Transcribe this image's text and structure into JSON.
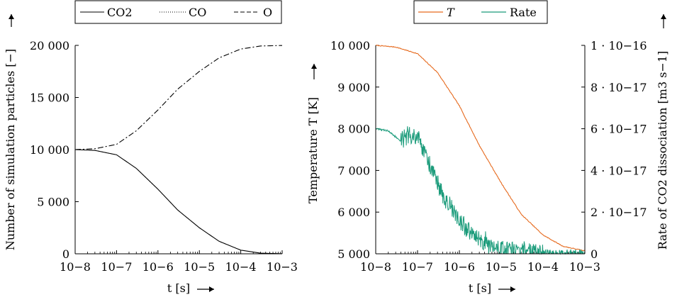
{
  "colors": {
    "axis": "#000000",
    "co2": "#000000",
    "co": "#000000",
    "o": "#000000",
    "temperature": "#E66A1E",
    "rate": "#1A9B7A"
  },
  "chart_data": [
    {
      "type": "line",
      "xlabel": "t [s]",
      "ylabel": "Number of simulation particles [−]",
      "xscale": "log",
      "xlim": [
        1e-08,
        0.001
      ],
      "ylim": [
        0,
        20000
      ],
      "x_tick_labels": [
        "10−8",
        "10−7",
        "10−6",
        "10−5",
        "10−4",
        "10−3"
      ],
      "y_tick_labels": [
        "0",
        "5 000",
        "10 000",
        "15 000",
        "20 000"
      ],
      "legend_position": "top",
      "series": [
        {
          "name": "CO2",
          "style": "solid",
          "x": [
            1e-08,
            3e-08,
            1e-07,
            3e-07,
            1e-06,
            3e-06,
            1e-05,
            3e-05,
            0.0001,
            0.0003,
            0.001
          ],
          "y": [
            10000,
            9920,
            9500,
            8200,
            6200,
            4200,
            2500,
            1200,
            350,
            60,
            10
          ]
        },
        {
          "name": "CO",
          "style": "dotted",
          "x": [
            1e-08,
            3e-08,
            1e-07,
            3e-07,
            1e-06,
            3e-06,
            1e-05,
            3e-05,
            0.0001,
            0.0003,
            0.001
          ],
          "y": [
            0,
            0,
            0,
            0,
            0,
            0,
            0,
            0,
            0,
            0,
            0
          ]
        },
        {
          "name": "O",
          "style": "dashdot",
          "x": [
            1e-08,
            3e-08,
            1e-07,
            3e-07,
            1e-06,
            3e-06,
            1e-05,
            3e-05,
            0.0001,
            0.0003,
            0.001
          ],
          "y": [
            10000,
            10080,
            10500,
            11800,
            13800,
            15800,
            17500,
            18800,
            19650,
            19940,
            19990
          ]
        }
      ]
    },
    {
      "type": "line",
      "xlabel": "t [s]",
      "ylabel": "Temperature T [K]",
      "ylabel_right": "Rate of CO2 dissociation [m3 s−1]",
      "xscale": "log",
      "xlim": [
        1e-08,
        0.001
      ],
      "ylim": [
        5000,
        10000
      ],
      "ylim_right": [
        0,
        1e-16
      ],
      "x_tick_labels": [
        "10−8",
        "10−7",
        "10−6",
        "10−5",
        "10−4",
        "10−3"
      ],
      "y_tick_labels": [
        "5 000",
        "6 000",
        "7 000",
        "8 000",
        "9 000",
        "10 000"
      ],
      "y_right_tick_labels": [
        "0",
        "2 · 10−17",
        "4 · 10−17",
        "6 · 10−17",
        "8 · 10−17",
        "1 · 10−16"
      ],
      "legend_position": "top",
      "series": [
        {
          "name": "T",
          "axis": "left",
          "x": [
            1e-08,
            3e-08,
            1e-07,
            3e-07,
            1e-06,
            3e-06,
            1e-05,
            3e-05,
            0.0001,
            0.0003,
            0.001
          ],
          "y": [
            10000,
            9960,
            9800,
            9350,
            8550,
            7600,
            6700,
            5950,
            5450,
            5180,
            5070
          ]
        },
        {
          "name": "Rate",
          "axis": "right",
          "x": [
            1e-08,
            2e-08,
            4e-08,
            6e-08,
            1e-07,
            2e-07,
            4e-07,
            1e-06,
            2e-06,
            4e-06,
            1e-05,
            3e-05,
            0.0001,
            0.0003,
            0.001
          ],
          "y": [
            6e-17,
            5.9e-17,
            5.4e-17,
            5.7e-17,
            5.6e-17,
            4.2e-17,
            2.8e-17,
            1.6e-17,
            9e-18,
            4e-18,
            2e-18,
            7e-19,
            2e-19,
            5e-20,
            0.0
          ]
        }
      ]
    }
  ]
}
